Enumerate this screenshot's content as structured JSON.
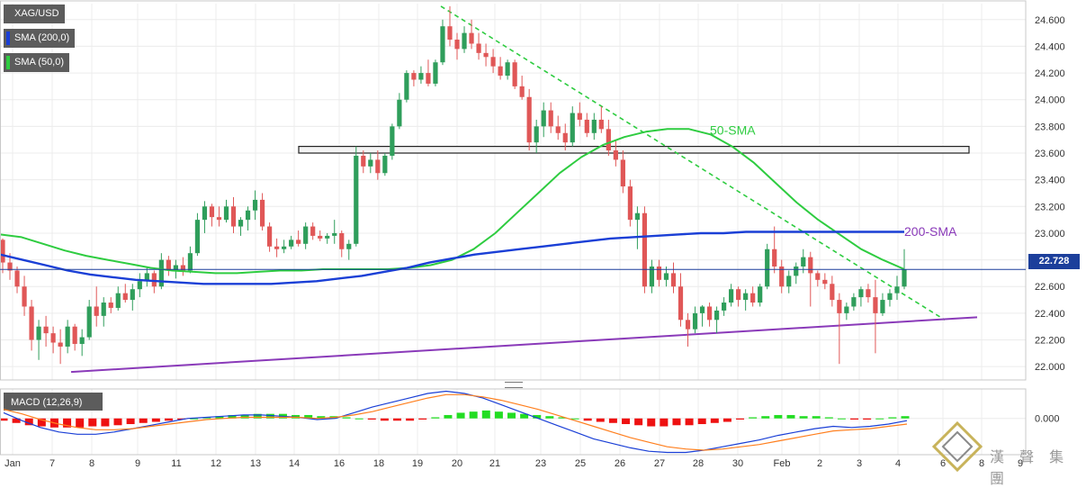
{
  "legend": {
    "symbol": "XAG/USD",
    "sma200_label": "SMA (200,0)",
    "sma50_label": "SMA (50,0)",
    "sma200_color": "#1a3fd6",
    "sma50_color": "#2ecc40"
  },
  "price_tag": "22.728",
  "watermark": "漢 聲 集 團",
  "chart_data": [
    {
      "type": "line",
      "title": "",
      "x_ticks": [
        "Jan",
        "7",
        "8",
        "9",
        "11",
        "12",
        "13",
        "14",
        "16",
        "18",
        "19",
        "20",
        "21",
        "23",
        "25",
        "26",
        "27",
        "28",
        "30",
        "Feb",
        "2",
        "3",
        "4",
        "6",
        "8",
        "9"
      ],
      "y_ticks": [
        "22.000",
        "22.200",
        "22.400",
        "22.600",
        "22.800",
        "23.000",
        "23.200",
        "23.400",
        "23.600",
        "23.800",
        "24.000",
        "24.200",
        "24.400",
        "24.600"
      ],
      "ylim": [
        21.9,
        24.72
      ],
      "grid": true,
      "last_price": 22.728,
      "candles_ohlc": [
        [
          22.95,
          22.96,
          22.7,
          22.78
        ],
        [
          22.78,
          22.85,
          22.65,
          22.72
        ],
        [
          22.72,
          22.75,
          22.55,
          22.6
        ],
        [
          22.6,
          22.68,
          22.38,
          22.45
        ],
        [
          22.45,
          22.5,
          22.12,
          22.2
        ],
        [
          22.2,
          22.35,
          22.05,
          22.3
        ],
        [
          22.3,
          22.38,
          22.15,
          22.25
        ],
        [
          22.25,
          22.3,
          22.1,
          22.18
        ],
        [
          22.18,
          22.28,
          22.02,
          22.15
        ],
        [
          22.15,
          22.35,
          22.1,
          22.3
        ],
        [
          22.3,
          22.32,
          22.12,
          22.17
        ],
        [
          22.17,
          22.28,
          22.08,
          22.22
        ],
        [
          22.22,
          22.5,
          22.2,
          22.45
        ],
        [
          22.45,
          22.6,
          22.3,
          22.38
        ],
        [
          22.38,
          22.52,
          22.3,
          22.48
        ],
        [
          22.48,
          22.52,
          22.4,
          22.44
        ],
        [
          22.44,
          22.6,
          22.42,
          22.55
        ],
        [
          22.55,
          22.62,
          22.48,
          22.5
        ],
        [
          22.5,
          22.62,
          22.42,
          22.58
        ],
        [
          22.58,
          22.7,
          22.52,
          22.64
        ],
        [
          22.64,
          22.74,
          22.6,
          22.7
        ],
        [
          22.7,
          22.72,
          22.55,
          22.6
        ],
        [
          22.6,
          22.85,
          22.58,
          22.8
        ],
        [
          22.8,
          22.83,
          22.68,
          22.72
        ],
        [
          22.72,
          22.8,
          22.66,
          22.76
        ],
        [
          22.76,
          22.82,
          22.68,
          22.72
        ],
        [
          22.72,
          22.9,
          22.7,
          22.85
        ],
        [
          22.85,
          23.15,
          22.83,
          23.1
        ],
        [
          23.1,
          23.24,
          23.0,
          23.2
        ],
        [
          23.2,
          23.22,
          23.05,
          23.12
        ],
        [
          23.12,
          23.2,
          23.05,
          23.1
        ],
        [
          23.1,
          23.25,
          23.08,
          23.2
        ],
        [
          23.2,
          23.27,
          23.0,
          23.05
        ],
        [
          23.05,
          23.12,
          22.98,
          23.1
        ],
        [
          23.1,
          23.2,
          23.02,
          23.17
        ],
        [
          23.17,
          23.32,
          23.1,
          23.25
        ],
        [
          23.25,
          23.3,
          23.02,
          23.05
        ],
        [
          23.05,
          23.08,
          22.86,
          22.9
        ],
        [
          22.9,
          22.96,
          22.82,
          22.88
        ],
        [
          22.88,
          22.95,
          22.85,
          22.9
        ],
        [
          22.9,
          22.98,
          22.88,
          22.95
        ],
        [
          22.95,
          23.02,
          22.9,
          22.92
        ],
        [
          22.92,
          23.08,
          22.88,
          23.05
        ],
        [
          23.05,
          23.08,
          22.95,
          22.98
        ],
        [
          22.98,
          23.02,
          22.94,
          22.96
        ],
        [
          22.96,
          23.0,
          22.92,
          22.98
        ],
        [
          22.98,
          23.1,
          22.92,
          23.0
        ],
        [
          23.0,
          23.02,
          22.82,
          22.88
        ],
        [
          22.88,
          22.95,
          22.8,
          22.92
        ],
        [
          22.92,
          23.65,
          22.9,
          23.58
        ],
        [
          23.58,
          23.62,
          23.45,
          23.5
        ],
        [
          23.5,
          23.6,
          23.45,
          23.55
        ],
        [
          23.55,
          23.62,
          23.4,
          23.45
        ],
        [
          23.45,
          23.6,
          23.43,
          23.58
        ],
        [
          23.58,
          23.82,
          23.55,
          23.8
        ],
        [
          23.8,
          24.05,
          23.78,
          24.0
        ],
        [
          24.0,
          24.22,
          23.98,
          24.2
        ],
        [
          24.2,
          24.22,
          24.1,
          24.15
        ],
        [
          24.15,
          24.25,
          24.12,
          24.2
        ],
        [
          24.2,
          24.3,
          24.1,
          24.12
        ],
        [
          24.12,
          24.3,
          24.1,
          24.28
        ],
        [
          24.28,
          24.6,
          24.26,
          24.55
        ],
        [
          24.55,
          24.7,
          24.4,
          24.45
        ],
        [
          24.45,
          24.5,
          24.3,
          24.38
        ],
        [
          24.38,
          24.55,
          24.35,
          24.5
        ],
        [
          24.5,
          24.6,
          24.38,
          24.42
        ],
        [
          24.42,
          24.5,
          24.3,
          24.35
        ],
        [
          24.35,
          24.42,
          24.25,
          24.32
        ],
        [
          24.32,
          24.38,
          24.2,
          24.25
        ],
        [
          24.25,
          24.32,
          24.15,
          24.18
        ],
        [
          24.18,
          24.3,
          24.15,
          24.28
        ],
        [
          24.28,
          24.3,
          24.08,
          24.1
        ],
        [
          24.1,
          24.18,
          24.0,
          24.02
        ],
        [
          24.02,
          24.08,
          23.62,
          23.68
        ],
        [
          23.68,
          23.85,
          23.6,
          23.8
        ],
        [
          23.8,
          23.98,
          23.72,
          23.92
        ],
        [
          23.92,
          23.98,
          23.75,
          23.8
        ],
        [
          23.8,
          23.88,
          23.7,
          23.75
        ],
        [
          23.75,
          23.82,
          23.62,
          23.68
        ],
        [
          23.68,
          23.95,
          23.65,
          23.9
        ],
        [
          23.9,
          23.98,
          23.8,
          23.85
        ],
        [
          23.85,
          23.9,
          23.72,
          23.75
        ],
        [
          23.75,
          23.9,
          23.7,
          23.85
        ],
        [
          23.85,
          23.95,
          23.75,
          23.78
        ],
        [
          23.78,
          23.85,
          23.58,
          23.62
        ],
        [
          23.62,
          23.7,
          23.5,
          23.55
        ],
        [
          23.55,
          23.62,
          23.3,
          23.35
        ],
        [
          23.35,
          23.4,
          23.05,
          23.1
        ],
        [
          23.1,
          23.2,
          22.88,
          23.15
        ],
        [
          23.15,
          23.2,
          22.55,
          22.6
        ],
        [
          22.6,
          22.8,
          22.55,
          22.75
        ],
        [
          22.75,
          22.8,
          22.6,
          22.65
        ],
        [
          22.65,
          22.75,
          22.6,
          22.7
        ],
        [
          22.7,
          22.78,
          22.55,
          22.6
        ],
        [
          22.6,
          22.7,
          22.3,
          22.35
        ],
        [
          22.35,
          22.4,
          22.15,
          22.28
        ],
        [
          22.28,
          22.45,
          22.25,
          22.4
        ],
        [
          22.4,
          22.46,
          22.3,
          22.45
        ],
        [
          22.45,
          22.48,
          22.3,
          22.35
        ],
        [
          22.35,
          22.45,
          22.25,
          22.42
        ],
        [
          22.42,
          22.52,
          22.38,
          22.48
        ],
        [
          22.48,
          22.62,
          22.45,
          22.58
        ],
        [
          22.58,
          22.6,
          22.45,
          22.5
        ],
        [
          22.5,
          22.58,
          22.42,
          22.55
        ],
        [
          22.55,
          22.6,
          22.45,
          22.48
        ],
        [
          22.48,
          22.62,
          22.45,
          22.6
        ],
        [
          22.6,
          22.92,
          22.58,
          22.88
        ],
        [
          22.88,
          23.05,
          22.7,
          22.75
        ],
        [
          22.75,
          22.8,
          22.55,
          22.6
        ],
        [
          22.6,
          22.72,
          22.55,
          22.68
        ],
        [
          22.68,
          22.78,
          22.62,
          22.75
        ],
        [
          22.75,
          22.88,
          22.7,
          22.82
        ],
        [
          22.82,
          22.86,
          22.45,
          22.7
        ],
        [
          22.7,
          22.72,
          22.6,
          22.65
        ],
        [
          22.65,
          22.7,
          22.58,
          22.62
        ],
        [
          22.62,
          22.68,
          22.45,
          22.5
        ],
        [
          22.5,
          22.55,
          22.02,
          22.4
        ],
        [
          22.4,
          22.48,
          22.35,
          22.45
        ],
        [
          22.45,
          22.55,
          22.42,
          22.52
        ],
        [
          22.52,
          22.6,
          22.45,
          22.58
        ],
        [
          22.58,
          22.62,
          22.48,
          22.52
        ],
        [
          22.52,
          22.65,
          22.1,
          22.4
        ],
        [
          22.4,
          22.55,
          22.38,
          22.5
        ],
        [
          22.5,
          22.58,
          22.45,
          22.55
        ],
        [
          22.55,
          22.68,
          22.5,
          22.6
        ],
        [
          22.6,
          22.88,
          22.58,
          22.728
        ]
      ],
      "series": [
        {
          "name": "",
          "color": "#2ecc40",
          "values": [
            22.99,
            22.97,
            22.92,
            22.87,
            22.83,
            22.8,
            22.77,
            22.74,
            22.72,
            22.71,
            22.7,
            22.7,
            22.71,
            22.72,
            22.72,
            22.73,
            22.73,
            22.73,
            22.73,
            22.74,
            22.76,
            22.8,
            22.88,
            23.0,
            23.15,
            23.3,
            23.45,
            23.57,
            23.66,
            23.72,
            23.76,
            23.78,
            23.78,
            23.74,
            23.65,
            23.53,
            23.38,
            23.23,
            23.1,
            22.99,
            22.88,
            22.8,
            22.73
          ]
        },
        {
          "name": "",
          "color": "#1a3fd6",
          "values": [
            22.84,
            22.8,
            22.76,
            22.72,
            22.69,
            22.67,
            22.65,
            22.64,
            22.63,
            22.62,
            22.62,
            22.62,
            22.62,
            22.63,
            22.64,
            22.66,
            22.68,
            22.71,
            22.74,
            22.78,
            22.81,
            22.84,
            22.86,
            22.88,
            22.9,
            22.92,
            22.94,
            22.96,
            22.97,
            22.98,
            22.99,
            23.0,
            23.0,
            23.01,
            23.01,
            23.01,
            23.01,
            23.01,
            23.01,
            23.01,
            23.01
          ]
        }
      ],
      "annotations": [
        {
          "text": "50-SMA",
          "color": "#2ecc40"
        },
        {
          "text": "200-SMA",
          "color": "#8a3ab9"
        }
      ],
      "resistance_zone": [
        23.6,
        23.65
      ],
      "trendlines": [
        {
          "type": "descending",
          "color": "#2ecc40",
          "from": [
            "21",
            24.7
          ],
          "to": [
            "8",
            22.35
          ]
        },
        {
          "type": "ascending",
          "color": "#8a3ab9",
          "from": [
            "8",
            21.96
          ],
          "to": [
            "9",
            22.37
          ]
        }
      ]
    },
    {
      "type": "bar",
      "title": "MACD (12,26,9)",
      "y_ticks": [
        "0.000"
      ],
      "ylim": [
        -0.32,
        0.26
      ],
      "histogram": [
        -0.02,
        -0.04,
        -0.06,
        -0.07,
        -0.08,
        -0.08,
        -0.08,
        -0.07,
        -0.07,
        -0.06,
        -0.05,
        -0.04,
        -0.03,
        -0.02,
        -0.01,
        0.0,
        0.01,
        0.02,
        0.03,
        0.03,
        0.04,
        0.04,
        0.04,
        0.03,
        0.03,
        0.02,
        0.02,
        0.01,
        0.0,
        -0.01,
        -0.02,
        -0.02,
        -0.02,
        -0.01,
        0.01,
        0.03,
        0.05,
        0.06,
        0.07,
        0.06,
        0.05,
        0.04,
        0.03,
        0.02,
        0.01,
        0.0,
        -0.02,
        -0.03,
        -0.04,
        -0.05,
        -0.06,
        -0.07,
        -0.07,
        -0.06,
        -0.06,
        -0.05,
        -0.04,
        -0.03,
        -0.01,
        0.01,
        0.02,
        0.03,
        0.03,
        0.02,
        0.02,
        0.01,
        0.0,
        -0.01,
        -0.01,
        0.0,
        0.01,
        0.02
      ],
      "series": [
        {
          "name": "",
          "color": "#1a3fd6",
          "values": [
            0.05,
            -0.02,
            -0.08,
            -0.12,
            -0.14,
            -0.14,
            -0.12,
            -0.09,
            -0.06,
            -0.03,
            0.0,
            0.01,
            0.02,
            0.03,
            0.03,
            0.02,
            0.01,
            -0.01,
            0.0,
            0.05,
            0.1,
            0.14,
            0.18,
            0.22,
            0.24,
            0.22,
            0.18,
            0.12,
            0.06,
            0.0,
            -0.06,
            -0.12,
            -0.18,
            -0.22,
            -0.26,
            -0.29,
            -0.3,
            -0.3,
            -0.28,
            -0.25,
            -0.22,
            -0.19,
            -0.15,
            -0.12,
            -0.09,
            -0.07,
            -0.08,
            -0.07,
            -0.05,
            -0.02
          ]
        },
        {
          "name": "",
          "color": "#ff7f1e",
          "values": [
            0.08,
            0.04,
            -0.01,
            -0.05,
            -0.08,
            -0.1,
            -0.1,
            -0.09,
            -0.07,
            -0.05,
            -0.03,
            -0.01,
            0.0,
            0.01,
            0.01,
            0.01,
            0.01,
            0.0,
            0.01,
            0.03,
            0.06,
            0.1,
            0.14,
            0.18,
            0.21,
            0.21,
            0.19,
            0.16,
            0.12,
            0.08,
            0.03,
            -0.02,
            -0.07,
            -0.12,
            -0.17,
            -0.21,
            -0.25,
            -0.27,
            -0.28,
            -0.27,
            -0.25,
            -0.23,
            -0.2,
            -0.17,
            -0.14,
            -0.11,
            -0.1,
            -0.09,
            -0.07,
            -0.05
          ]
        }
      ]
    }
  ]
}
